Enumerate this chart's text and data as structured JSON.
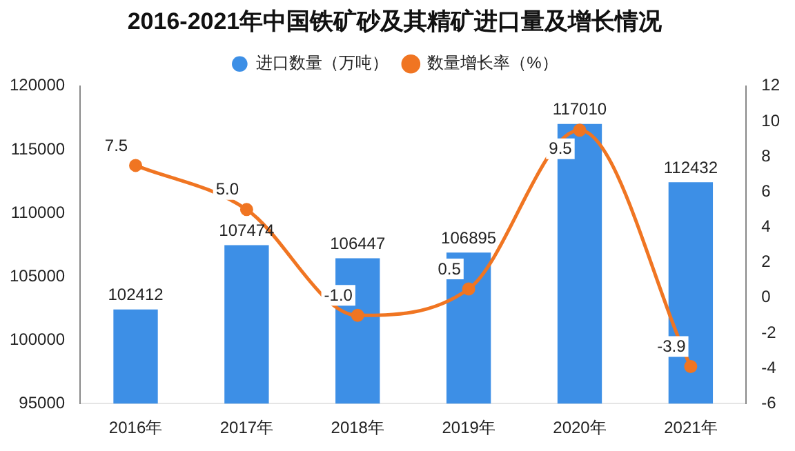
{
  "chart_data": {
    "type": "bar",
    "title": "2016-2021年中国铁矿砂及其精矿进口量及增长情况",
    "categories": [
      "2016年",
      "2017年",
      "2018年",
      "2019年",
      "2020年",
      "2021年"
    ],
    "series": [
      {
        "name": "进口数量（万吨）",
        "color": "#3d8fe6",
        "values": [
          102412,
          107474,
          106447,
          106895,
          117010,
          112432
        ],
        "value_labels": [
          "102412",
          "107474",
          "106447",
          "106895",
          "117010",
          "112432"
        ]
      },
      {
        "name": "数量增长率（%）",
        "type": "line",
        "axis": "y2",
        "color": "#f07522",
        "values": [
          7.5,
          5.0,
          -1.0,
          0.5,
          9.5,
          -3.9
        ],
        "value_labels": [
          "7.5",
          "5.0",
          "-1.0",
          "0.5",
          "9.5",
          "-3.9"
        ]
      }
    ],
    "ylim": [
      95000,
      120000
    ],
    "yticks": [
      95000,
      100000,
      105000,
      110000,
      115000,
      120000
    ],
    "y2lim": [
      -6,
      12
    ],
    "y2ticks": [
      -6,
      -4,
      -2,
      0,
      2,
      4,
      6,
      8,
      10,
      12
    ],
    "legend": "top",
    "marker": "circle"
  }
}
